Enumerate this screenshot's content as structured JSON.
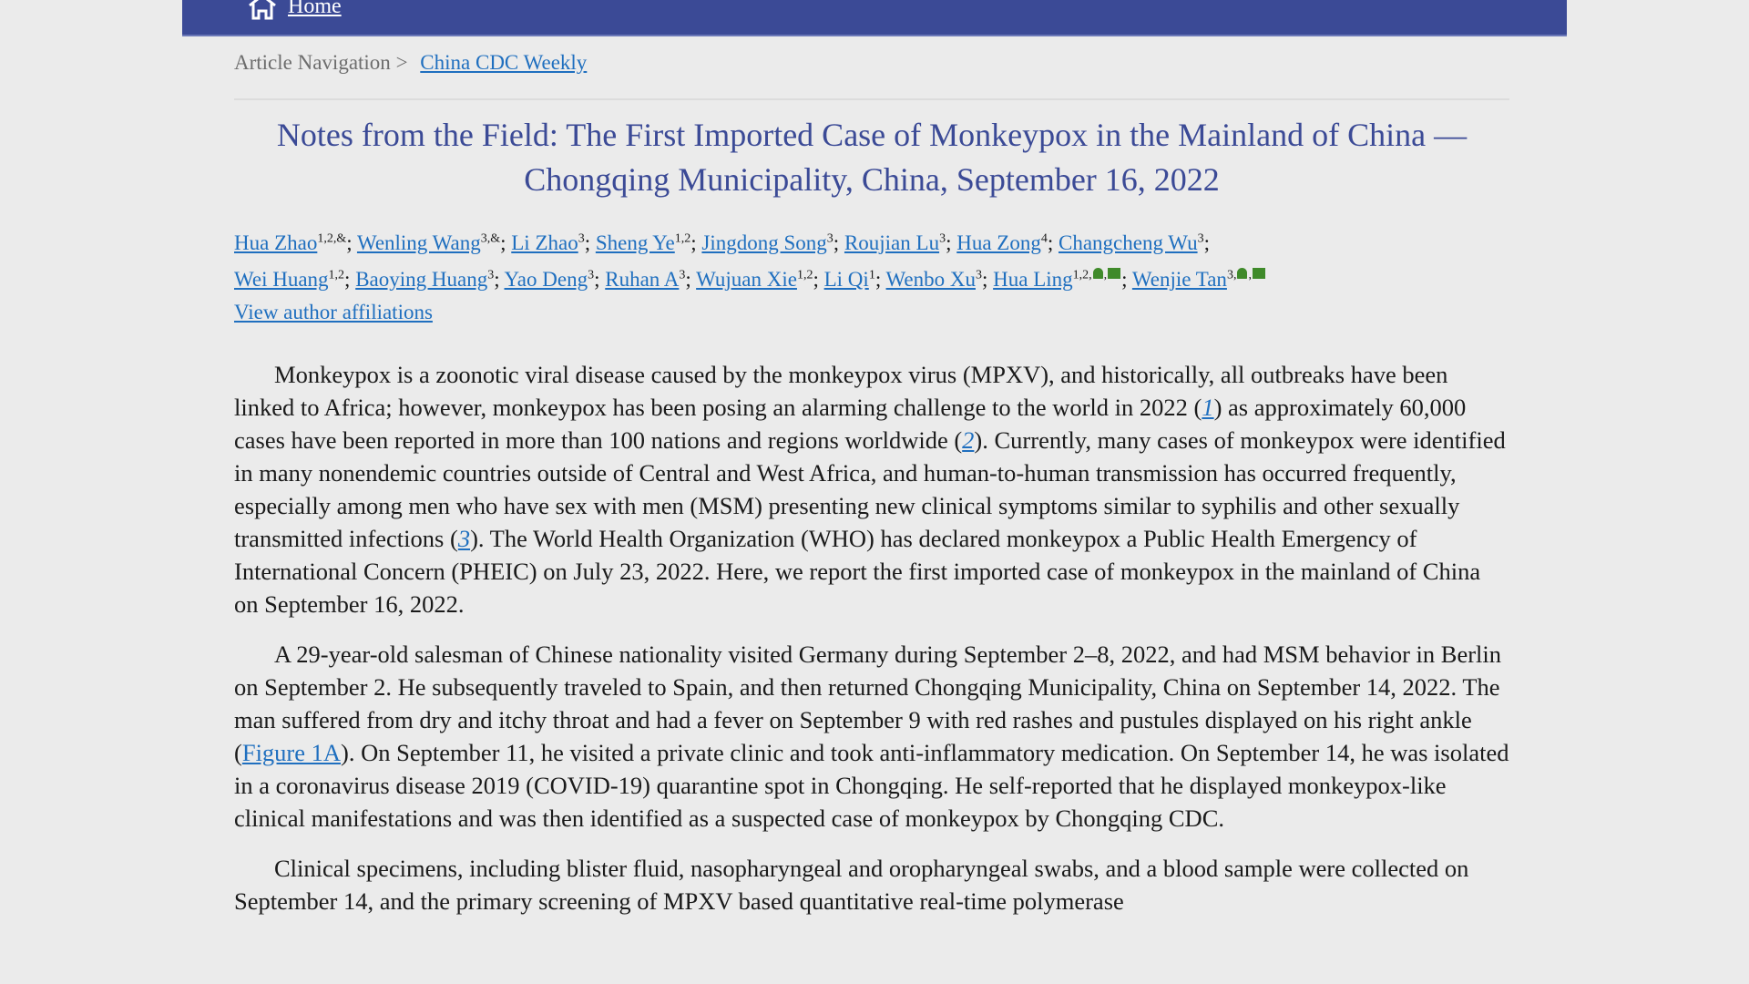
{
  "header": {
    "home_label": "Home"
  },
  "breadcrumb": {
    "prefix": "Article Navigation",
    "separator": ">",
    "link": "China CDC Weekly"
  },
  "title": "Notes from the Field: The First Imported Case of Monkeypox in the Mainland of China — Chongqing Municipality, China, September 16, 2022",
  "authors": [
    {
      "name": "Hua Zhao",
      "sup": "1,2,&"
    },
    {
      "name": "Wenling Wang",
      "sup": "3,&"
    },
    {
      "name": "Li Zhao",
      "sup": "3"
    },
    {
      "name": "Sheng Ye",
      "sup": "1,2"
    },
    {
      "name": "Jingdong Song",
      "sup": "3"
    },
    {
      "name": "Roujian Lu",
      "sup": "3"
    },
    {
      "name": "Hua Zong",
      "sup": "4"
    },
    {
      "name": "Changcheng Wu",
      "sup": "3"
    },
    {
      "name": "Wei Huang",
      "sup": "1,2"
    },
    {
      "name": "Baoying Huang",
      "sup": "3"
    },
    {
      "name": "Yao Deng",
      "sup": "3"
    },
    {
      "name": "Ruhan A",
      "sup": "3"
    },
    {
      "name": "Wujuan Xie",
      "sup": "1,2"
    },
    {
      "name": "Li Qi",
      "sup": "1"
    },
    {
      "name": "Wenbo Xu",
      "sup": "3"
    },
    {
      "name": "Hua Ling",
      "sup": "1,2,",
      "corresponding": true
    },
    {
      "name": "Wenjie Tan",
      "sup": "3,",
      "corresponding": true
    }
  ],
  "affiliations_link": "View author affiliations",
  "paragraphs": [
    [
      {
        "t": "Monkeypox is a zoonotic viral disease caused by the monkeypox virus (MPXV), and historically, all outbreaks have been linked to Africa; however, monkeypox has been posing an alarming challenge to the world in 2022 ("
      },
      {
        "ref": "1"
      },
      {
        "t": ") as approximately 60,000 cases have been reported in more than 100 nations and regions worldwide ("
      },
      {
        "ref": "2"
      },
      {
        "t": "). Currently, many cases of monkeypox were identified in many nonendemic countries outside of Central and West Africa, and human-to-human transmission has occurred frequently, especially among men who have sex with men (MSM) presenting new clinical symptoms similar to syphilis and other sexually transmitted infections ("
      },
      {
        "ref": "3"
      },
      {
        "t": "). The World Health Organization (WHO) has declared monkeypox a Public Health Emergency of International Concern (PHEIC) on July 23, 2022. Here, we report the first imported case of monkeypox in the mainland of China on September 16, 2022."
      }
    ],
    [
      {
        "t": "A 29-year-old salesman of Chinese nationality visited Germany during September 2–8, 2022, and had MSM behavior in Berlin on September 2. He subsequently traveled to Spain, and then returned Chongqing Municipality, China on September 14, 2022. The man suffered from dry and itchy throat and had a fever on September 9 with red rashes and pustules displayed on his right ankle ("
      },
      {
        "link": "Figure 1A"
      },
      {
        "t": "). On September 11, he visited a private clinic and took anti-inflammatory medication. On September 14, he was isolated in a coronavirus disease 2019 (COVID-19) quarantine spot in Chongqing. He self-reported that he displayed monkeypox-like clinical manifestations and was then identified as a suspected case of monkeypox by Chongqing CDC."
      }
    ],
    [
      {
        "t": "Clinical specimens, including blister fluid, nasopharyngeal and oropharyngeal swabs, and a blood sample were collected on September 14, and the primary screening of MPXV based quantitative real-time polymerase"
      }
    ]
  ],
  "colors": {
    "header_bg": "#3b4a96",
    "title": "#3b4a96",
    "link": "#1f6fbf",
    "icon_green": "#3f8a2a",
    "page_bg": "#ebebeb"
  }
}
